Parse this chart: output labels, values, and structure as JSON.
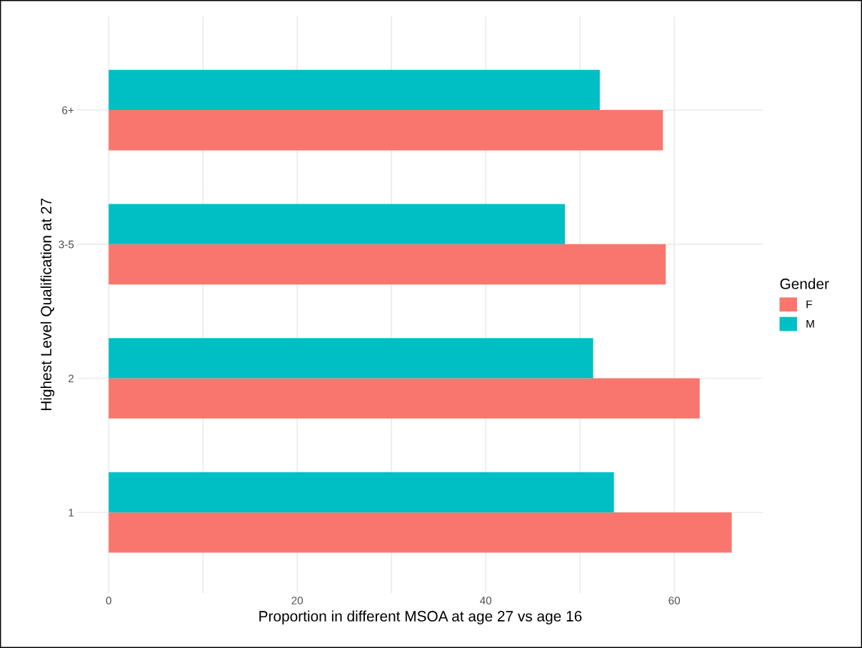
{
  "chart_data": {
    "type": "bar",
    "orientation": "horizontal",
    "xlabel": "Proportion in different MSOA at age 27 vs age 16",
    "ylabel": "Highest Level Qualification at 27",
    "legend_title": "Gender",
    "categories": [
      "6+",
      "3-5",
      "2",
      "1"
    ],
    "series": [
      {
        "name": "F",
        "color": "#f8766d",
        "values": [
          58.8,
          59.1,
          62.7,
          66.1
        ]
      },
      {
        "name": "M",
        "color": "#00bfc4",
        "values": [
          52.1,
          48.4,
          51.4,
          53.6
        ]
      }
    ],
    "xlim": [
      -3.3,
      69.4
    ],
    "xticks": [
      0,
      {
        "value": 10,
        "label": null
      },
      20,
      {
        "value": 30,
        "label": null
      },
      40,
      {
        "value": 50,
        "label": null
      },
      60
    ],
    "grid": true,
    "legend": "right"
  }
}
